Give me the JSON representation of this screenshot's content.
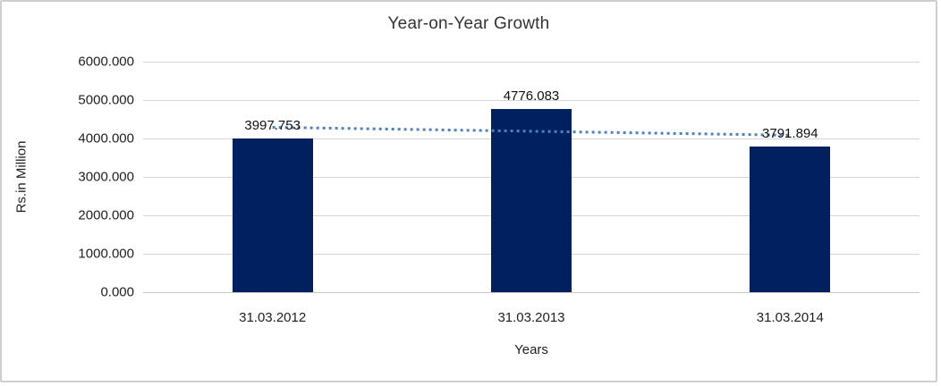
{
  "chart_data": {
    "type": "bar",
    "title": "Year-on-Year Growth",
    "xlabel": "Years",
    "ylabel": "Rs.in Million",
    "categories": [
      "31.03.2012",
      "31.03.2013",
      "31.03.2014"
    ],
    "values": [
      3997.753,
      4776.083,
      3791.894
    ],
    "data_labels": [
      "3997.753",
      "4776.083",
      "3791.894"
    ],
    "ylim": [
      0,
      6000
    ],
    "y_ticks": [
      "0.000",
      "1000.000",
      "2000.000",
      "3000.000",
      "4000.000",
      "5000.000",
      "6000.000"
    ],
    "grid": true,
    "legend": "none",
    "bar_color": "#002060",
    "gridline_color": "#d6d6d6",
    "trendline": {
      "type": "linear",
      "style": "dotted",
      "color": "#4f81bd",
      "start_value": 4291.5,
      "end_value": 4085.7
    }
  }
}
